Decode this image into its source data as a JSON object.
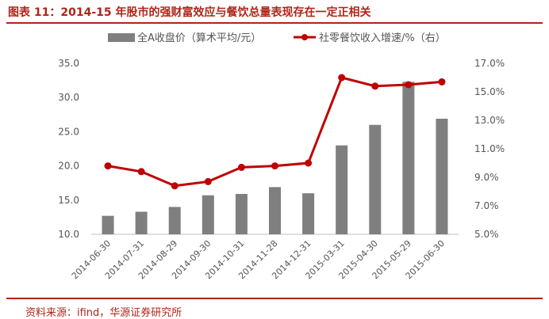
{
  "header": {
    "title": "图表 11：2014-15 年股市的强财富效应与餐饮总量表现存在一定正相关"
  },
  "footer": {
    "source": "资料来源：ifind，华源证券研究所"
  },
  "colors": {
    "accent": "#b02418",
    "bar": "#7f7f7f",
    "line": "#c00000"
  },
  "chart_data": {
    "type": "bar+line",
    "categories": [
      "2014-06-30",
      "2014-07-31",
      "2014-08-29",
      "2014-09-30",
      "2014-10-31",
      "2014-11-28",
      "2014-12-31",
      "2015-03-31",
      "2015-04-30",
      "2015-05-29",
      "2015-06-30"
    ],
    "series": [
      {
        "name": "全A收盘价（算术平均/元）",
        "type": "bar",
        "axis": "left",
        "values": [
          12.7,
          13.3,
          14.0,
          15.7,
          15.9,
          16.9,
          16.0,
          23.0,
          26.0,
          32.3,
          26.9
        ]
      },
      {
        "name": "社零餐饮收入增速/%（右）",
        "type": "line",
        "axis": "right",
        "values": [
          9.8,
          9.4,
          8.4,
          8.7,
          9.7,
          9.8,
          10.0,
          16.0,
          15.4,
          15.5,
          15.7
        ]
      }
    ],
    "y_left": {
      "ylim": [
        10,
        35
      ],
      "ticks": [
        "10.0",
        "15.0",
        "20.0",
        "25.0",
        "30.0",
        "35.0"
      ]
    },
    "y_right": {
      "ylim": [
        5,
        17
      ],
      "ticks": [
        "5.0%",
        "7.0%",
        "9.0%",
        "11.0%",
        "13.0%",
        "15.0%",
        "17.0%"
      ]
    },
    "legend": "top",
    "grid": false
  }
}
